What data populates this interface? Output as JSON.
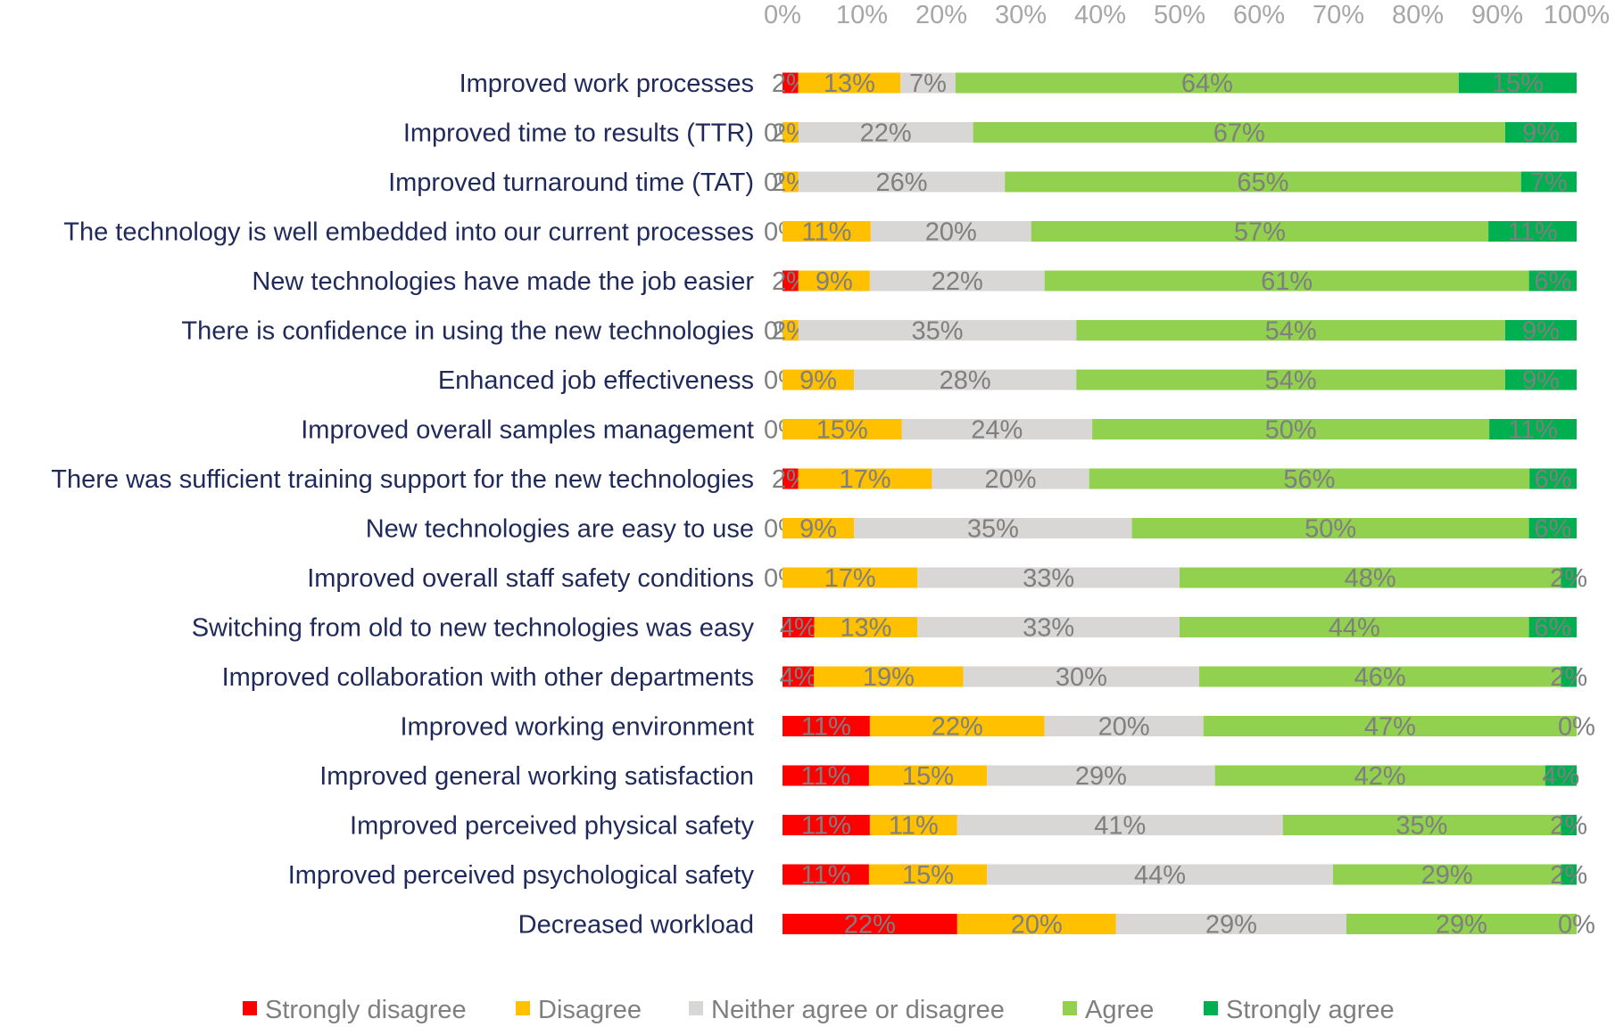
{
  "chart_data": {
    "type": "bar",
    "orientation": "horizontal",
    "stacked": "percent",
    "title": "",
    "xlabel": "",
    "ylabel": "",
    "xlim": [
      0,
      100
    ],
    "ticks": [
      "0%",
      "10%",
      "20%",
      "30%",
      "40%",
      "50%",
      "60%",
      "70%",
      "80%",
      "90%",
      "100%"
    ],
    "legend_position": "bottom",
    "categories": [
      "Improved work processes",
      "Improved time to results (TTR)",
      "Improved turnaround time (TAT)",
      "The technology is well embedded into our current processes",
      "New technologies have made the job easier",
      "There is confidence in using the new technologies",
      "Enhanced  job effectiveness",
      "Improved overall samples management",
      "There was sufficient training support for the new technologies",
      "New technologies are easy to use",
      "Improved overall staff safety conditions",
      "Switching from old to new technologies was easy",
      "Improved collaboration with other departments",
      "Improved working environment",
      "Improved general working satisfaction",
      "Improved perceived physical safety",
      "Improved perceived psychological safety",
      "Decreased workload"
    ],
    "series": [
      {
        "name": "Strongly disagree",
        "color": "#ff0000",
        "values": [
          2,
          0,
          0,
          0,
          2,
          0,
          0,
          0,
          2,
          0,
          0,
          4,
          4,
          11,
          11,
          11,
          11,
          22
        ]
      },
      {
        "name": "Disagree",
        "color": "#ffc000",
        "values": [
          13,
          2,
          2,
          11,
          9,
          2,
          9,
          15,
          17,
          9,
          17,
          13,
          19,
          22,
          15,
          11,
          15,
          20
        ]
      },
      {
        "name": "Neither agree or disagree",
        "color": "#d9d6d6",
        "values": [
          7,
          22,
          26,
          20,
          22,
          35,
          28,
          24,
          20,
          35,
          33,
          33,
          30,
          20,
          29,
          41,
          44,
          29
        ]
      },
      {
        "name": "Agree",
        "color": "#92d050",
        "values": [
          64,
          67,
          65,
          57,
          61,
          54,
          54,
          50,
          56,
          50,
          48,
          44,
          46,
          47,
          42,
          35,
          29,
          29
        ]
      },
      {
        "name": "Strongly agree",
        "color": "#00b050",
        "values": [
          15,
          9,
          7,
          11,
          6,
          9,
          9,
          11,
          6,
          6,
          2,
          6,
          2,
          0,
          4,
          2,
          2,
          0
        ]
      }
    ]
  }
}
